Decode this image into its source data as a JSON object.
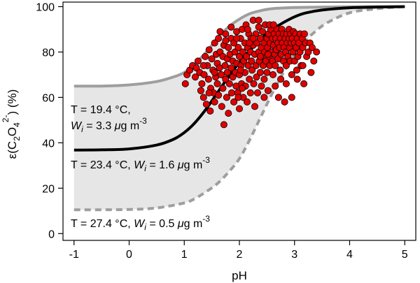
{
  "chart_data": {
    "type": "scatter",
    "xlabel": "pH",
    "ylabel": "ε(C2O4 2-) (%)",
    "ylabel_parts": {
      "base": "ε(C",
      "sub1": "2",
      "mid": "O",
      "sub2": "4",
      "sup": "2-",
      "end": ") (%)"
    },
    "xlim": [
      -1.2,
      5.2
    ],
    "ylim": [
      -3,
      102
    ],
    "xticks": [
      -1,
      0,
      1,
      2,
      3,
      4,
      5
    ],
    "yticks": [
      0,
      20,
      40,
      60,
      80,
      100
    ],
    "grid": false,
    "series": [
      {
        "role": "upper-bound-curve",
        "style": "solid-gray",
        "color": "#9e9e9e",
        "x": [
          -1.0,
          -0.5,
          0.0,
          0.5,
          0.8,
          1.0,
          1.2,
          1.4,
          1.6,
          1.8,
          2.0,
          2.2,
          2.4,
          2.6,
          3.0,
          3.5,
          4.0,
          4.5,
          5.0
        ],
        "y": [
          65,
          65,
          65.5,
          67,
          69,
          71,
          75,
          80,
          86,
          91,
          94.5,
          97,
          98.3,
          99.1,
          99.6,
          99.8,
          99.9,
          100,
          100
        ]
      },
      {
        "role": "middle-curve",
        "style": "solid-black",
        "color": "#000000",
        "x": [
          -1.0,
          -0.5,
          0.0,
          0.5,
          0.8,
          1.0,
          1.2,
          1.4,
          1.6,
          1.8,
          2.0,
          2.2,
          2.4,
          2.6,
          2.8,
          3.0,
          3.2,
          3.5,
          4.0,
          4.5,
          5.0
        ],
        "y": [
          36.8,
          36.9,
          37.3,
          39.0,
          41.5,
          44.5,
          49,
          55,
          62,
          69,
          75.5,
          81,
          86,
          90,
          93,
          95.5,
          97.2,
          98.5,
          99.5,
          99.8,
          100
        ]
      },
      {
        "role": "lower-bound-curve",
        "style": "dashed-gray",
        "color": "#9e9e9e",
        "x": [
          -1.0,
          -0.5,
          0.0,
          0.5,
          1.0,
          1.2,
          1.4,
          1.6,
          1.8,
          2.0,
          2.2,
          2.4,
          2.6,
          2.8,
          3.0,
          3.2,
          3.4,
          3.6,
          4.0,
          4.5,
          5.0
        ],
        "y": [
          10.5,
          10.5,
          10.6,
          11.3,
          13.5,
          15.5,
          18.5,
          22,
          27,
          33,
          42,
          52,
          62,
          71,
          78.5,
          85,
          89.5,
          93,
          97.3,
          99.1,
          100
        ]
      },
      {
        "role": "observations",
        "style": "red-circles",
        "color": "#e00000",
        "edge": "#000000",
        "points": [
          [
            1.02,
            66
          ],
          [
            1.05,
            70
          ],
          [
            1.1,
            72
          ],
          [
            1.15,
            74
          ],
          [
            1.2,
            69
          ],
          [
            1.22,
            73
          ],
          [
            1.25,
            76
          ],
          [
            1.28,
            71
          ],
          [
            1.3,
            63
          ],
          [
            1.32,
            66
          ],
          [
            1.35,
            60
          ],
          [
            1.36,
            70
          ],
          [
            1.38,
            78
          ],
          [
            1.4,
            57
          ],
          [
            1.42,
            74
          ],
          [
            1.44,
            68
          ],
          [
            1.45,
            81
          ],
          [
            1.47,
            54
          ],
          [
            1.48,
            64
          ],
          [
            1.5,
            77
          ],
          [
            1.52,
            72
          ],
          [
            1.53,
            62
          ],
          [
            1.55,
            84
          ],
          [
            1.55,
            58
          ],
          [
            1.57,
            69
          ],
          [
            1.58,
            79
          ],
          [
            1.6,
            75
          ],
          [
            1.6,
            66
          ],
          [
            1.62,
            86
          ],
          [
            1.62,
            61
          ],
          [
            1.64,
            73
          ],
          [
            1.65,
            80
          ],
          [
            1.67,
            70
          ],
          [
            1.68,
            56
          ],
          [
            1.7,
            78
          ],
          [
            1.7,
            64
          ],
          [
            1.72,
            83
          ],
          [
            1.72,
            48
          ],
          [
            1.74,
            74
          ],
          [
            1.75,
            68
          ],
          [
            1.75,
            88
          ],
          [
            1.77,
            60
          ],
          [
            1.78,
            77
          ],
          [
            1.78,
            71
          ],
          [
            1.8,
            82
          ],
          [
            1.8,
            53
          ],
          [
            1.82,
            66
          ],
          [
            1.83,
            79
          ],
          [
            1.85,
            86
          ],
          [
            1.85,
            73
          ],
          [
            1.86,
            62
          ],
          [
            1.88,
            76
          ],
          [
            1.88,
            69
          ],
          [
            1.9,
            84
          ],
          [
            1.9,
            58
          ],
          [
            1.92,
            80
          ],
          [
            1.93,
            71
          ],
          [
            1.94,
            65
          ],
          [
            1.95,
            89
          ],
          [
            1.95,
            75
          ],
          [
            1.97,
            62
          ],
          [
            1.98,
            82
          ],
          [
            2.0,
            78
          ],
          [
            2.0,
            70
          ],
          [
            2.0,
            55
          ],
          [
            2.02,
            86
          ],
          [
            2.03,
            74
          ],
          [
            2.04,
            66
          ],
          [
            2.05,
            90
          ],
          [
            2.06,
            80
          ],
          [
            2.07,
            60
          ],
          [
            2.08,
            76
          ],
          [
            2.1,
            84
          ],
          [
            2.1,
            71
          ],
          [
            2.11,
            65
          ],
          [
            2.12,
            92
          ],
          [
            2.13,
            78
          ],
          [
            2.14,
            58
          ],
          [
            2.15,
            82
          ],
          [
            2.16,
            74
          ],
          [
            2.17,
            88
          ],
          [
            2.18,
            68
          ],
          [
            2.2,
            80
          ],
          [
            2.2,
            62
          ],
          [
            2.21,
            86
          ],
          [
            2.22,
            76
          ],
          [
            2.23,
            72
          ],
          [
            2.25,
            94
          ],
          [
            2.25,
            83
          ],
          [
            2.26,
            66
          ],
          [
            2.28,
            79
          ],
          [
            2.28,
            56
          ],
          [
            2.3,
            88
          ],
          [
            2.3,
            74
          ],
          [
            2.31,
            69
          ],
          [
            2.32,
            84
          ],
          [
            2.33,
            62
          ],
          [
            2.35,
            80
          ],
          [
            2.35,
            91
          ],
          [
            2.36,
            76
          ],
          [
            2.38,
            71
          ],
          [
            2.38,
            86
          ],
          [
            2.4,
            82
          ],
          [
            2.4,
            65
          ],
          [
            2.41,
            78
          ],
          [
            2.42,
            89
          ],
          [
            2.43,
            74
          ],
          [
            2.45,
            84
          ],
          [
            2.45,
            68
          ],
          [
            2.46,
            80
          ],
          [
            2.47,
            92
          ],
          [
            2.48,
            76
          ],
          [
            2.5,
            86
          ],
          [
            2.5,
            71
          ],
          [
            2.51,
            82
          ],
          [
            2.52,
            63
          ],
          [
            2.53,
            88
          ],
          [
            2.54,
            78
          ],
          [
            2.55,
            74
          ],
          [
            2.56,
            84
          ],
          [
            2.57,
            90
          ],
          [
            2.58,
            80
          ],
          [
            2.6,
            86
          ],
          [
            2.6,
            76
          ],
          [
            2.61,
            70
          ],
          [
            2.62,
            83
          ],
          [
            2.63,
            88
          ],
          [
            2.64,
            79
          ],
          [
            2.65,
            74
          ],
          [
            2.66,
            86
          ],
          [
            2.67,
            81
          ],
          [
            2.68,
            90
          ],
          [
            2.7,
            84
          ],
          [
            2.7,
            77
          ],
          [
            2.71,
            60
          ],
          [
            2.72,
            88
          ],
          [
            2.73,
            82
          ],
          [
            2.74,
            72
          ],
          [
            2.75,
            86
          ],
          [
            2.76,
            79
          ],
          [
            2.77,
            90
          ],
          [
            2.78,
            84
          ],
          [
            2.8,
            76
          ],
          [
            2.8,
            88
          ],
          [
            2.81,
            82
          ],
          [
            2.82,
            58
          ],
          [
            2.83,
            86
          ],
          [
            2.84,
            80
          ],
          [
            2.85,
            74
          ],
          [
            2.86,
            88
          ],
          [
            2.87,
            84
          ],
          [
            2.88,
            78
          ],
          [
            2.9,
            86
          ],
          [
            2.9,
            90
          ],
          [
            2.91,
            82
          ],
          [
            2.92,
            76
          ],
          [
            2.93,
            88
          ],
          [
            2.94,
            84
          ],
          [
            2.95,
            70
          ],
          [
            2.96,
            86
          ],
          [
            2.97,
            80
          ],
          [
            2.98,
            89
          ],
          [
            3.0,
            84
          ],
          [
            3.0,
            76
          ],
          [
            3.02,
            88
          ],
          [
            3.03,
            82
          ],
          [
            3.04,
            72
          ],
          [
            3.05,
            86
          ],
          [
            3.06,
            78
          ],
          [
            3.08,
            84
          ],
          [
            3.1,
            88
          ],
          [
            3.1,
            80
          ],
          [
            3.12,
            74
          ],
          [
            3.14,
            86
          ],
          [
            3.15,
            82
          ],
          [
            3.17,
            66
          ],
          [
            3.18,
            88
          ],
          [
            3.2,
            84
          ],
          [
            3.22,
            78
          ],
          [
            3.25,
            80
          ],
          [
            3.28,
            84
          ],
          [
            3.3,
            71
          ],
          [
            3.32,
            82
          ],
          [
            3.35,
            76
          ],
          [
            3.4,
            80
          ],
          [
            1.95,
            86
          ],
          [
            2.15,
            90
          ],
          [
            2.35,
            94
          ],
          [
            2.55,
            92
          ],
          [
            2.05,
            64
          ],
          [
            1.85,
            91
          ],
          [
            2.45,
            60
          ],
          [
            2.65,
            65
          ],
          [
            1.75,
            85
          ],
          [
            1.65,
            89
          ],
          [
            2.25,
            86
          ],
          [
            2.85,
            66
          ],
          [
            3.05,
            68
          ],
          [
            1.55,
            71
          ],
          [
            1.45,
            62
          ],
          [
            2.95,
            60
          ],
          [
            2.75,
            68
          ],
          [
            3.15,
            74
          ],
          [
            1.35,
            74
          ],
          [
            2.02,
            72
          ],
          [
            2.62,
            92
          ],
          [
            2.38,
            78
          ],
          [
            1.98,
            60
          ],
          [
            2.18,
            84
          ],
          [
            2.52,
            79
          ]
        ]
      }
    ],
    "annotations": [
      {
        "name": "upper-curve-label",
        "lines": [
          {
            "plain": "T = 19.4 °C,"
          },
          {
            "italic": "W",
            "sub": "i",
            "plain": " = 3.3 ",
            "unit_italic": "μ",
            "unit": "g m",
            "sup": "-3"
          }
        ]
      },
      {
        "name": "middle-curve-label",
        "lines": [
          {
            "plain": "T = 23.4 °C, ",
            "italic": "W",
            "sub": "i",
            "plain2": " = 1.6 ",
            "unit_italic": "μ",
            "unit": "g m",
            "sup": "-3"
          }
        ]
      },
      {
        "name": "lower-curve-label",
        "lines": [
          {
            "plain": "T = 27.4 °C, ",
            "italic": "W",
            "sub": "i",
            "plain2": " = 0.5 ",
            "unit_italic": "μ",
            "unit": "g m",
            "sup": "-3"
          }
        ]
      }
    ]
  }
}
